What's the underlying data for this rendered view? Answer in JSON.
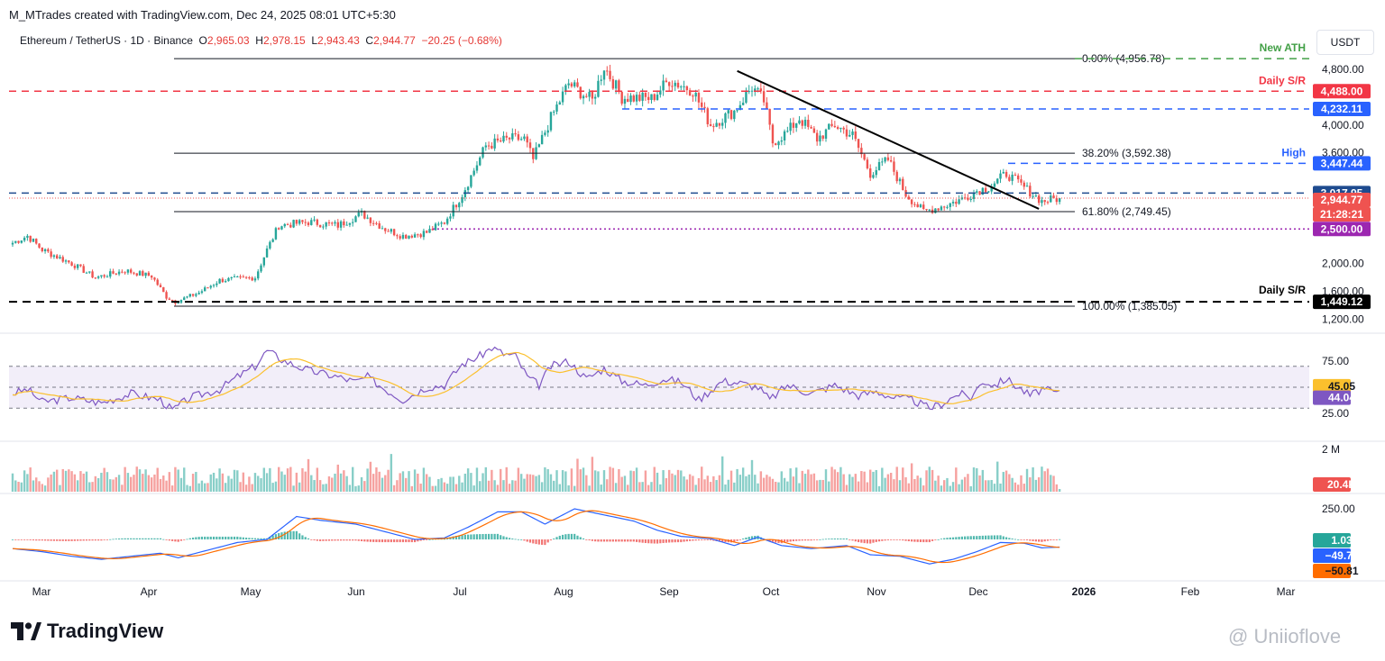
{
  "header": {
    "credit": "M_MTrades created with TradingView.com, Dec 24, 2025 08:01 UTC+5:30",
    "symbol": "Ethereum / TetherUS · 1D · Binance",
    "o_label": "O",
    "o_value": "2,965.03",
    "h_label": "H",
    "h_value": "2,978.15",
    "l_label": "L",
    "l_value": "2,943.43",
    "c_label": "C",
    "c_value": "2,944.77",
    "change": "−20.25 (−0.68%)",
    "currency_button": "USDT"
  },
  "footer": {
    "logo_text": "TradingView",
    "watermark": "@ Uniioflove"
  },
  "colors": {
    "up": "#26a69a",
    "down": "#ef5350",
    "blue_line": "#2962ff",
    "red_line": "#f23645",
    "green_line": "#43a047",
    "purple": "#9c27b0",
    "rsi_line": "#7e57c2",
    "rsi_ma": "#fbc02d",
    "macd": "#2962ff",
    "signal": "#ff6d00"
  },
  "chart_data": {
    "type": "candlestick",
    "title": "Ethereum / TetherUS · 1D · Binance",
    "x_tick_labels": [
      "Mar",
      "Apr",
      "May",
      "Jun",
      "Jul",
      "Aug",
      "Sep",
      "Oct",
      "Nov",
      "Dec",
      "2026",
      "Feb",
      "Mar"
    ],
    "price_axis_ticks": [
      "4,800.00",
      "4,000.00",
      "3,600.00",
      "2,000.00",
      "1,600.00",
      "1,200.00"
    ],
    "price_range": [
      1100,
      5050
    ],
    "price_anchors": [
      {
        "day": 0,
        "price": 2300
      },
      {
        "day": 5,
        "price": 2400
      },
      {
        "day": 10,
        "price": 2200
      },
      {
        "day": 20,
        "price": 2000
      },
      {
        "day": 28,
        "price": 1800
      },
      {
        "day": 38,
        "price": 1900
      },
      {
        "day": 47,
        "price": 1820
      },
      {
        "day": 52,
        "price": 1520
      },
      {
        "day": 55,
        "price": 1450
      },
      {
        "day": 63,
        "price": 1580
      },
      {
        "day": 70,
        "price": 1760
      },
      {
        "day": 82,
        "price": 1800
      },
      {
        "day": 86,
        "price": 2200
      },
      {
        "day": 90,
        "price": 2550
      },
      {
        "day": 100,
        "price": 2600
      },
      {
        "day": 110,
        "price": 2550
      },
      {
        "day": 118,
        "price": 2720
      },
      {
        "day": 126,
        "price": 2500
      },
      {
        "day": 132,
        "price": 2400
      },
      {
        "day": 140,
        "price": 2450
      },
      {
        "day": 146,
        "price": 2600
      },
      {
        "day": 152,
        "price": 3000
      },
      {
        "day": 160,
        "price": 3700
      },
      {
        "day": 168,
        "price": 3800
      },
      {
        "day": 173,
        "price": 3800
      },
      {
        "day": 176,
        "price": 3500
      },
      {
        "day": 182,
        "price": 4100
      },
      {
        "day": 188,
        "price": 4600
      },
      {
        "day": 196,
        "price": 4350
      },
      {
        "day": 200,
        "price": 4850
      },
      {
        "day": 206,
        "price": 4400
      },
      {
        "day": 216,
        "price": 4380
      },
      {
        "day": 222,
        "price": 4650
      },
      {
        "day": 230,
        "price": 4500
      },
      {
        "day": 236,
        "price": 4000
      },
      {
        "day": 244,
        "price": 4200
      },
      {
        "day": 250,
        "price": 4550
      },
      {
        "day": 254,
        "price": 4350
      },
      {
        "day": 257,
        "price": 3750
      },
      {
        "day": 262,
        "price": 3900
      },
      {
        "day": 266,
        "price": 4100
      },
      {
        "day": 272,
        "price": 3800
      },
      {
        "day": 278,
        "price": 4000
      },
      {
        "day": 284,
        "price": 3850
      },
      {
        "day": 290,
        "price": 3300
      },
      {
        "day": 296,
        "price": 3500
      },
      {
        "day": 302,
        "price": 3000
      },
      {
        "day": 308,
        "price": 2750
      },
      {
        "day": 316,
        "price": 2850
      },
      {
        "day": 322,
        "price": 2950
      },
      {
        "day": 326,
        "price": 3050
      },
      {
        "day": 330,
        "price": 3100
      },
      {
        "day": 336,
        "price": 3300
      },
      {
        "day": 342,
        "price": 3100
      },
      {
        "day": 348,
        "price": 2900
      },
      {
        "day": 354,
        "price": 2945
      }
    ],
    "annotations": {
      "new_ath": {
        "label": "New ATH",
        "price": 4956.78
      },
      "daily_sr_upper": {
        "label": "Daily S/R",
        "price": 4488.0,
        "price_label": "4,488.00"
      },
      "blue_level": {
        "price": 4232.11,
        "price_label": "4,232.11"
      },
      "high": {
        "label": "High",
        "price": 3447.44,
        "price_label": "3,447.44"
      },
      "blue_level_2": {
        "price": 3017.95,
        "price_label": "3,017.95"
      },
      "last_price": {
        "price": 2944.77,
        "price_label": "2,944.77",
        "countdown": "21:28:21"
      },
      "purple_level": {
        "price": 2500.0,
        "price_label": "2,500.00"
      },
      "daily_sr_lower": {
        "label": "Daily S/R",
        "price": 1449.12,
        "price_label": "1,449.12"
      },
      "fib": [
        {
          "label": "0.00% (4,956.78)",
          "price": 4956.78
        },
        {
          "label": "38.20% (3,592.38)",
          "price": 3592.38
        },
        {
          "label": "61.80% (2,749.45)",
          "price": 2749.45
        },
        {
          "label": "100.00% (1,385.05)",
          "price": 1385.05
        }
      ],
      "trendline": {
        "from": {
          "day": 245,
          "price": 4780
        },
        "to": {
          "day": 347,
          "price": 2790
        }
      }
    },
    "rsi": {
      "axis_ticks": [
        "75.00",
        "25.00"
      ],
      "levels": [
        70,
        50,
        30
      ],
      "value": "44.04",
      "ma_value": "45.05",
      "anchors": [
        {
          "day": 0,
          "price": 44
        },
        {
          "day": 5,
          "price": 48
        },
        {
          "day": 10,
          "price": 36
        },
        {
          "day": 20,
          "price": 40
        },
        {
          "day": 30,
          "price": 35
        },
        {
          "day": 40,
          "price": 44
        },
        {
          "day": 50,
          "price": 38
        },
        {
          "day": 54,
          "price": 28
        },
        {
          "day": 60,
          "price": 40
        },
        {
          "day": 70,
          "price": 48
        },
        {
          "day": 76,
          "price": 60
        },
        {
          "day": 82,
          "price": 70
        },
        {
          "day": 86,
          "price": 85
        },
        {
          "day": 92,
          "price": 75
        },
        {
          "day": 100,
          "price": 66
        },
        {
          "day": 110,
          "price": 60
        },
        {
          "day": 116,
          "price": 55
        },
        {
          "day": 120,
          "price": 60
        },
        {
          "day": 126,
          "price": 48
        },
        {
          "day": 132,
          "price": 38
        },
        {
          "day": 140,
          "price": 50
        },
        {
          "day": 146,
          "price": 52
        },
        {
          "day": 152,
          "price": 72
        },
        {
          "day": 158,
          "price": 80
        },
        {
          "day": 162,
          "price": 88
        },
        {
          "day": 166,
          "price": 82
        },
        {
          "day": 170,
          "price": 80
        },
        {
          "day": 174,
          "price": 60
        },
        {
          "day": 178,
          "price": 52
        },
        {
          "day": 182,
          "price": 70
        },
        {
          "day": 188,
          "price": 75
        },
        {
          "day": 194,
          "price": 58
        },
        {
          "day": 200,
          "price": 68
        },
        {
          "day": 206,
          "price": 56
        },
        {
          "day": 214,
          "price": 52
        },
        {
          "day": 220,
          "price": 58
        },
        {
          "day": 226,
          "price": 55
        },
        {
          "day": 232,
          "price": 38
        },
        {
          "day": 240,
          "price": 56
        },
        {
          "day": 246,
          "price": 54
        },
        {
          "day": 252,
          "price": 50
        },
        {
          "day": 256,
          "price": 38
        },
        {
          "day": 262,
          "price": 52
        },
        {
          "day": 270,
          "price": 44
        },
        {
          "day": 278,
          "price": 52
        },
        {
          "day": 286,
          "price": 42
        },
        {
          "day": 292,
          "price": 46
        },
        {
          "day": 298,
          "price": 40
        },
        {
          "day": 304,
          "price": 38
        },
        {
          "day": 310,
          "price": 30
        },
        {
          "day": 314,
          "price": 34
        },
        {
          "day": 320,
          "price": 44
        },
        {
          "day": 324,
          "price": 40
        },
        {
          "day": 328,
          "price": 56
        },
        {
          "day": 332,
          "price": 52
        },
        {
          "day": 336,
          "price": 58
        },
        {
          "day": 340,
          "price": 50
        },
        {
          "day": 344,
          "price": 42
        },
        {
          "day": 348,
          "price": 48
        },
        {
          "day": 354,
          "price": 44
        }
      ]
    },
    "volume": {
      "axis_ticks": [
        "2 M"
      ],
      "last_value": "20.4K"
    },
    "macd": {
      "axis_ticks": [
        "250.00"
      ],
      "histogram_value": "1.03",
      "macd_value": "−49.78",
      "signal_value": "−50.81",
      "macd_anchors": [
        {
          "day": 0,
          "price": -60
        },
        {
          "day": 10,
          "price": -80
        },
        {
          "day": 20,
          "price": -110
        },
        {
          "day": 30,
          "price": -130
        },
        {
          "day": 40,
          "price": -110
        },
        {
          "day": 50,
          "price": -90
        },
        {
          "day": 56,
          "price": -120
        },
        {
          "day": 66,
          "price": -70
        },
        {
          "day": 76,
          "price": -20
        },
        {
          "day": 86,
          "price": 0
        },
        {
          "day": 96,
          "price": 150
        },
        {
          "day": 104,
          "price": 125
        },
        {
          "day": 116,
          "price": 100
        },
        {
          "day": 126,
          "price": 50
        },
        {
          "day": 136,
          "price": 0
        },
        {
          "day": 146,
          "price": 10
        },
        {
          "day": 154,
          "price": 80
        },
        {
          "day": 164,
          "price": 180
        },
        {
          "day": 172,
          "price": 180
        },
        {
          "day": 180,
          "price": 100
        },
        {
          "day": 190,
          "price": 200
        },
        {
          "day": 200,
          "price": 160
        },
        {
          "day": 210,
          "price": 120
        },
        {
          "day": 218,
          "price": 60
        },
        {
          "day": 226,
          "price": 20
        },
        {
          "day": 236,
          "price": 5
        },
        {
          "day": 244,
          "price": -40
        },
        {
          "day": 252,
          "price": 15
        },
        {
          "day": 260,
          "price": -40
        },
        {
          "day": 270,
          "price": -60
        },
        {
          "day": 282,
          "price": -40
        },
        {
          "day": 290,
          "price": -100
        },
        {
          "day": 300,
          "price": -110
        },
        {
          "day": 310,
          "price": -160
        },
        {
          "day": 318,
          "price": -130
        },
        {
          "day": 326,
          "price": -80
        },
        {
          "day": 334,
          "price": -20
        },
        {
          "day": 342,
          "price": -25
        },
        {
          "day": 348,
          "price": -55
        },
        {
          "day": 354,
          "price": -50
        }
      ]
    }
  }
}
